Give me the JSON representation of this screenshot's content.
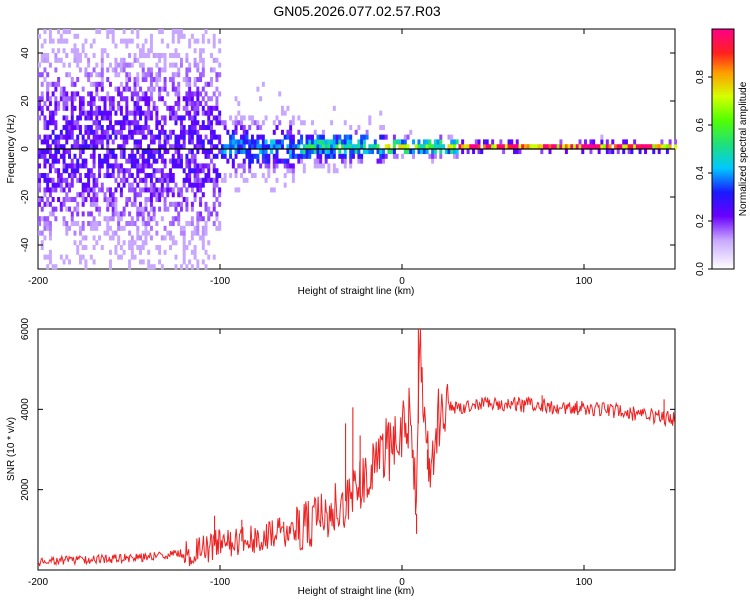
{
  "page": {
    "title": "GN05.2026.077.02.57.R03"
  },
  "colors": {
    "background": "#ffffff",
    "snr_line": "#ee2222",
    "purple_dark": "#5000d8",
    "purple_light": "#c8a8ff",
    "blue": "#2424ff",
    "cyan": "#12d7d7",
    "green": "#2bff2b",
    "orange": "#ff8c00",
    "red": "#ff2020",
    "pink": "#ff3388"
  },
  "chart_data": [
    {
      "type": "heatmap",
      "name": "spectrogram",
      "title": "",
      "xlabel": "Height of straight line (km)",
      "ylabel": "Frequency (Hz)",
      "xlim": [
        -200,
        150
      ],
      "ylim": [
        -50,
        50
      ],
      "xticks": [
        -200,
        -100,
        0,
        100
      ],
      "xtick_labels": [
        "-200",
        "-100",
        "0",
        "100"
      ],
      "yticks": [
        40,
        20,
        0,
        -20,
        -40
      ],
      "ytick_labels": [
        "40",
        "20",
        "0",
        "-20",
        "-40"
      ],
      "colorbar": {
        "label": "Normalized spectral amplitude",
        "range": [
          0.0,
          1.0
        ],
        "ticks": [
          0.0,
          0.2,
          0.4,
          0.6,
          0.8
        ],
        "tick_labels": [
          "0.0",
          "0.2",
          "0.4",
          "0.6",
          "0.8"
        ],
        "colormap": [
          [
            0.0,
            "#ffffff"
          ],
          [
            0.12,
            "#c8a8ff"
          ],
          [
            0.22,
            "#6a00ff"
          ],
          [
            0.32,
            "#1a1aff"
          ],
          [
            0.42,
            "#00c8ff"
          ],
          [
            0.52,
            "#1fe07a"
          ],
          [
            0.62,
            "#52ff00"
          ],
          [
            0.72,
            "#d6ff00"
          ],
          [
            0.82,
            "#ff9a00"
          ],
          [
            0.9,
            "#ff2020"
          ],
          [
            1.0,
            "#ff0088"
          ]
        ]
      },
      "region_model": [
        {
          "x_range": [
            -200,
            -100
          ],
          "freq_spread_hz": 50,
          "density": 0.62,
          "amp": 0.24
        },
        {
          "x_range": [
            -100,
            -60
          ],
          "freq_spread_hz": 12,
          "density": 0.72,
          "amp": 0.38
        },
        {
          "x_range": [
            -60,
            -10
          ],
          "freq_spread_hz": 7,
          "density": 0.82,
          "amp": 0.48
        },
        {
          "x_range": [
            -10,
            30
          ],
          "freq_spread_hz": 4,
          "density": 0.86,
          "amp": 0.62
        },
        {
          "x_range": [
            30,
            150
          ],
          "freq_spread_hz": 2,
          "density": 0.95,
          "amp": 0.92
        }
      ],
      "center_frequency_hz": 0
    },
    {
      "type": "line",
      "name": "snr",
      "title": "",
      "xlabel": "Height of straight line (km)",
      "ylabel": "SNR (10 * v/v)",
      "xlim": [
        -200,
        150
      ],
      "ylim": [
        0,
        6000
      ],
      "xticks": [
        -200,
        -100,
        0,
        100
      ],
      "xtick_labels": [
        "-200",
        "-100",
        "0",
        "100"
      ],
      "yticks": [
        2000,
        4000,
        6000
      ],
      "ytick_labels": [
        "2000",
        "4000",
        "6000"
      ],
      "series": [
        {
          "name": "SNR",
          "color": "#ee2222",
          "x": [
            -200,
            -180,
            -160,
            -140,
            -120,
            -110,
            -100,
            -90,
            -80,
            -70,
            -60,
            -50,
            -40,
            -30,
            -25,
            -20,
            -15,
            -10,
            -5,
            0,
            5,
            8,
            10,
            12,
            15,
            20,
            25,
            30,
            40,
            50,
            60,
            70,
            80,
            90,
            100,
            110,
            120,
            130,
            140,
            150
          ],
          "values": [
            200,
            250,
            280,
            320,
            420,
            500,
            650,
            700,
            760,
            900,
            1000,
            1200,
            1400,
            1750,
            2000,
            2350,
            2600,
            2900,
            3150,
            3500,
            3800,
            1400,
            5900,
            3600,
            2700,
            3700,
            4000,
            4050,
            4150,
            4180,
            4130,
            4100,
            4080,
            4040,
            4020,
            4000,
            3950,
            3880,
            3820,
            3750
          ]
        }
      ],
      "spikes": [
        {
          "x": -103,
          "value": 1350
        },
        {
          "x": -88,
          "value": 1250
        },
        {
          "x": -65,
          "value": 1200
        },
        {
          "x": -31,
          "value": 3650
        },
        {
          "x": -27,
          "value": 4050
        },
        {
          "x": -23,
          "value": 3350
        },
        {
          "x": 8,
          "value": 900
        },
        {
          "x": 9,
          "value": 6000
        },
        {
          "x": 14,
          "value": 2500
        },
        {
          "x": 77,
          "value": 4350
        },
        {
          "x": 144,
          "value": 4250
        }
      ]
    }
  ]
}
